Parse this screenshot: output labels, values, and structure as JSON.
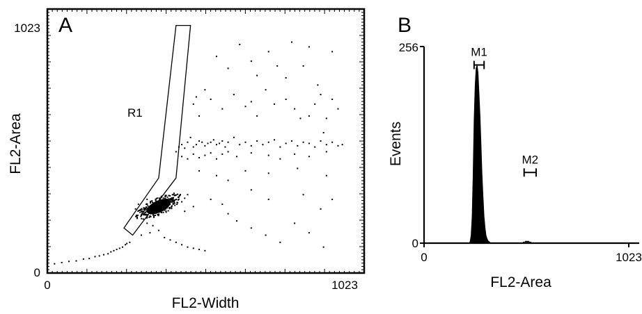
{
  "figure": {
    "panels": [
      {
        "letter": "A",
        "type": "scatter",
        "xlabel": "FL2-Width",
        "ylabel": "FL2-Area",
        "xlim": [
          0,
          1023
        ],
        "ylim": [
          0,
          1023
        ],
        "x_ticks": [
          "0",
          "1023"
        ],
        "y_ticks": [
          "0",
          "1023"
        ],
        "gate": {
          "name": "R1",
          "vertices": [
            [
              440,
              1030
            ],
            [
              490,
              1030
            ],
            [
              440,
              390
            ],
            [
              290,
              150
            ],
            [
              260,
              180
            ],
            [
              380,
              390
            ]
          ]
        }
      },
      {
        "letter": "B",
        "type": "histogram",
        "xlabel": "FL2-Area",
        "ylabel": "Events",
        "xlim": [
          0,
          1023
        ],
        "ylim": [
          0,
          256
        ],
        "x_ticks": [
          "0",
          "1023"
        ],
        "y_ticks": [
          "0",
          "256"
        ],
        "markers": [
          {
            "name": "M1",
            "range": [
              250,
              300
            ],
            "level": 232
          },
          {
            "name": "M2",
            "range": [
              500,
              560
            ],
            "level": 92
          }
        ]
      }
    ]
  },
  "chart_data": [
    {
      "type": "scatter",
      "title": "",
      "xlabel": "FL2-Width",
      "ylabel": "FL2-Area",
      "xlim": [
        0,
        1023
      ],
      "ylim": [
        0,
        1023
      ],
      "grid": false,
      "dense_cluster": {
        "center": [
          380,
          270
        ],
        "spread": [
          45,
          25
        ]
      },
      "points": [
        [
          20,
          30
        ],
        [
          45,
          35
        ],
        [
          70,
          40
        ],
        [
          95,
          42
        ],
        [
          120,
          50
        ],
        [
          140,
          52
        ],
        [
          160,
          60
        ],
        [
          175,
          63
        ],
        [
          190,
          68
        ],
        [
          205,
          72
        ],
        [
          215,
          80
        ],
        [
          225,
          85
        ],
        [
          235,
          90
        ],
        [
          245,
          95
        ],
        [
          255,
          100
        ],
        [
          265,
          110
        ],
        [
          270,
          115
        ],
        [
          280,
          120
        ],
        [
          300,
          260
        ],
        [
          310,
          280
        ],
        [
          320,
          250
        ],
        [
          330,
          240
        ],
        [
          340,
          300
        ],
        [
          350,
          230
        ],
        [
          360,
          270
        ],
        [
          370,
          295
        ],
        [
          380,
          285
        ],
        [
          390,
          310
        ],
        [
          400,
          255
        ],
        [
          410,
          300
        ],
        [
          420,
          290
        ],
        [
          430,
          280
        ],
        [
          440,
          300
        ],
        [
          450,
          310
        ],
        [
          460,
          290
        ],
        [
          470,
          305
        ],
        [
          480,
          320
        ],
        [
          340,
          200
        ],
        [
          360,
          190
        ],
        [
          380,
          170
        ],
        [
          400,
          140
        ],
        [
          420,
          130
        ],
        [
          440,
          120
        ],
        [
          460,
          110
        ],
        [
          480,
          100
        ],
        [
          500,
          95
        ],
        [
          520,
          90
        ],
        [
          540,
          85
        ],
        [
          320,
          150
        ],
        [
          350,
          160
        ],
        [
          470,
          250
        ],
        [
          500,
          270
        ],
        [
          440,
          500
        ],
        [
          450,
          520
        ],
        [
          460,
          530
        ],
        [
          470,
          515
        ],
        [
          480,
          540
        ],
        [
          490,
          560
        ],
        [
          500,
          520
        ],
        [
          510,
          530
        ],
        [
          520,
          545
        ],
        [
          530,
          540
        ],
        [
          540,
          525
        ],
        [
          550,
          535
        ],
        [
          560,
          540
        ],
        [
          570,
          550
        ],
        [
          580,
          530
        ],
        [
          590,
          535
        ],
        [
          600,
          545
        ],
        [
          610,
          520
        ],
        [
          620,
          540
        ],
        [
          640,
          560
        ],
        [
          660,
          530
        ],
        [
          680,
          540
        ],
        [
          700,
          525
        ],
        [
          720,
          545
        ],
        [
          740,
          530
        ],
        [
          760,
          540
        ],
        [
          780,
          550
        ],
        [
          800,
          520
        ],
        [
          820,
          535
        ],
        [
          840,
          545
        ],
        [
          860,
          525
        ],
        [
          880,
          540
        ],
        [
          900,
          535
        ],
        [
          920,
          520
        ],
        [
          940,
          545
        ],
        [
          960,
          530
        ],
        [
          980,
          540
        ],
        [
          1000,
          525
        ],
        [
          1015,
          530
        ],
        [
          460,
          480
        ],
        [
          480,
          470
        ],
        [
          500,
          490
        ],
        [
          520,
          475
        ],
        [
          540,
          485
        ],
        [
          560,
          495
        ],
        [
          580,
          470
        ],
        [
          600,
          490
        ],
        [
          620,
          500
        ],
        [
          650,
          480
        ],
        [
          700,
          495
        ],
        [
          760,
          485
        ],
        [
          800,
          470
        ],
        [
          850,
          490
        ],
        [
          900,
          480
        ],
        [
          960,
          500
        ],
        [
          500,
          700
        ],
        [
          510,
          730
        ],
        [
          520,
          650
        ],
        [
          540,
          760
        ],
        [
          560,
          720
        ],
        [
          600,
          680
        ],
        [
          640,
          740
        ],
        [
          680,
          690
        ],
        [
          700,
          710
        ],
        [
          720,
          650
        ],
        [
          750,
          760
        ],
        [
          780,
          700
        ],
        [
          820,
          720
        ],
        [
          850,
          680
        ],
        [
          870,
          640
        ],
        [
          900,
          650
        ],
        [
          920,
          700
        ],
        [
          940,
          740
        ],
        [
          960,
          640
        ],
        [
          980,
          720
        ],
        [
          1000,
          680
        ],
        [
          950,
          580
        ],
        [
          580,
          900
        ],
        [
          620,
          850
        ],
        [
          660,
          950
        ],
        [
          700,
          880
        ],
        [
          760,
          920
        ],
        [
          820,
          810
        ],
        [
          880,
          860
        ],
        [
          930,
          780
        ],
        [
          980,
          920
        ],
        [
          720,
          820
        ],
        [
          790,
          860
        ],
        [
          840,
          960
        ],
        [
          900,
          940
        ],
        [
          560,
          300
        ],
        [
          600,
          280
        ],
        [
          620,
          240
        ],
        [
          650,
          210
        ],
        [
          700,
          180
        ],
        [
          750,
          150
        ],
        [
          800,
          120
        ],
        [
          850,
          200
        ],
        [
          900,
          160
        ],
        [
          950,
          100
        ],
        [
          980,
          300
        ],
        [
          620,
          380
        ],
        [
          700,
          340
        ],
        [
          760,
          300
        ],
        [
          880,
          320
        ],
        [
          940,
          260
        ],
        [
          520,
          420
        ],
        [
          580,
          400
        ],
        [
          680,
          420
        ],
        [
          760,
          410
        ],
        [
          860,
          430
        ],
        [
          960,
          400
        ]
      ]
    },
    {
      "type": "bar",
      "title": "",
      "xlabel": "FL2-Area",
      "ylabel": "Events",
      "xlim": [
        0,
        1023
      ],
      "ylim": [
        0,
        256
      ],
      "grid": false,
      "x": [
        225,
        230,
        235,
        240,
        245,
        250,
        255,
        260,
        265,
        270,
        275,
        280,
        285,
        290,
        295,
        300,
        305,
        310,
        315,
        320,
        325,
        330,
        335,
        500,
        510,
        520,
        530
      ],
      "values": [
        0,
        2,
        10,
        35,
        90,
        160,
        205,
        228,
        232,
        222,
        195,
        165,
        128,
        90,
        60,
        35,
        20,
        10,
        6,
        3,
        2,
        1,
        0,
        1,
        2,
        2,
        1
      ]
    }
  ]
}
